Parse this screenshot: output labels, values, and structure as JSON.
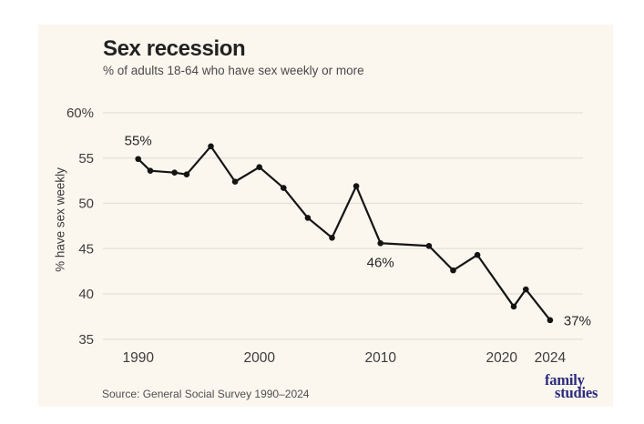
{
  "page": {
    "background": "#ffffff"
  },
  "card": {
    "background": "#fbf6ee"
  },
  "header": {
    "title": "Sex recession",
    "subtitle": "% of adults 18-64 who have sex weekly or more"
  },
  "chart_data": {
    "type": "line",
    "title": "Sex recession",
    "subtitle": "% of adults 18-64 who have sex weekly or more",
    "xlabel": "",
    "ylabel": "% have sex weekly",
    "x": [
      1990,
      1991,
      1993,
      1994,
      1996,
      1998,
      2000,
      2002,
      2004,
      2006,
      2008,
      2010,
      2014,
      2016,
      2018,
      2021,
      2022,
      2024
    ],
    "values": [
      54.9,
      53.6,
      53.4,
      53.2,
      56.3,
      52.4,
      54.0,
      51.7,
      48.4,
      46.2,
      51.9,
      45.6,
      45.3,
      42.6,
      44.3,
      38.6,
      40.5,
      37.1
    ],
    "ylim": [
      35,
      60
    ],
    "xlim": [
      1988,
      2026
    ],
    "yticks": [
      {
        "value": 60,
        "label": "60%"
      },
      {
        "value": 55,
        "label": "55"
      },
      {
        "value": 50,
        "label": "50"
      },
      {
        "value": 45,
        "label": "45"
      },
      {
        "value": 40,
        "label": "40"
      },
      {
        "value": 35,
        "label": "35"
      }
    ],
    "xticks": [
      {
        "value": 1990,
        "label": "1990"
      },
      {
        "value": 2000,
        "label": "2000"
      },
      {
        "value": 2010,
        "label": "2010"
      },
      {
        "value": 2020,
        "label": "2020"
      },
      {
        "value": 2024,
        "label": "2024"
      }
    ],
    "grid": true,
    "legend": "none",
    "line_color": "#141414",
    "marker_color": "#141414",
    "grid_color": "#e5e1d8",
    "tick_color": "#3d3d3d",
    "annotation_color": "#262626",
    "annotations": [
      {
        "x": 1990,
        "y": 54.9,
        "text": "55%",
        "position": "above"
      },
      {
        "x": 2010,
        "y": 45.6,
        "text": "46%",
        "position": "below"
      },
      {
        "x": 2024,
        "y": 37.1,
        "text": "37%",
        "position": "right"
      }
    ]
  },
  "footer": {
    "source": "Source: General Social Survey 1990–2024",
    "logo_line1": "family",
    "logo_line2": "studies"
  }
}
